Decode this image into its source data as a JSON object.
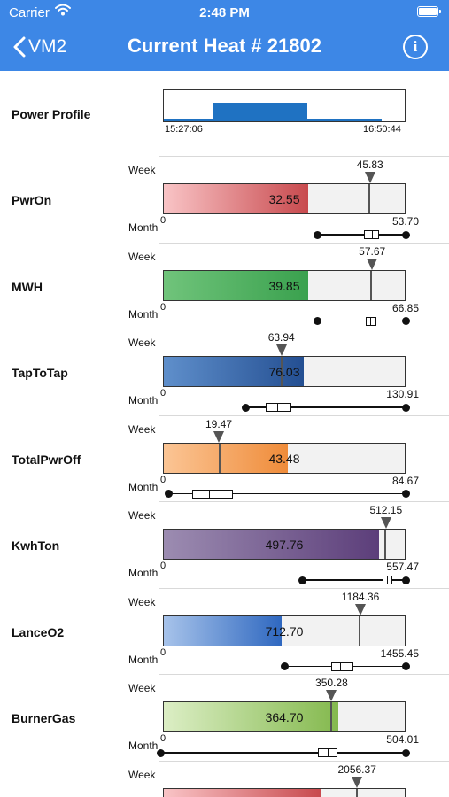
{
  "status_bar": {
    "carrier": "Carrier",
    "time": "2:48 PM"
  },
  "nav": {
    "back_label": "VM2",
    "title": "Current Heat # 21802"
  },
  "power_profile": {
    "label": "Power Profile",
    "start_time": "15:27:06",
    "end_time": "16:50:44"
  },
  "week_label": "Week",
  "month_label": "Month",
  "metrics": [
    {
      "name": "PwrOn",
      "value": "32.55",
      "week": "45.83",
      "min": "0",
      "max": "53.70",
      "fill_fraction": 0.6,
      "week_fraction": 0.853,
      "color_from": "#f9c4c6",
      "color_to": "#c84a4e",
      "month_box": {
        "min": 0.638,
        "q1": 0.83,
        "median": 0.86,
        "q3": 0.89,
        "max": 1.0
      }
    },
    {
      "name": "MWH",
      "value": "39.85",
      "week": "57.67",
      "min": "0",
      "max": "66.85",
      "fill_fraction": 0.6,
      "week_fraction": 0.862,
      "color_from": "#70c47b",
      "color_to": "#3aa14e",
      "month_box": {
        "min": 0.638,
        "q1": 0.835,
        "median": 0.855,
        "q3": 0.88,
        "max": 1.0
      }
    },
    {
      "name": "TapToTap",
      "value": "76.03",
      "week": "63.94",
      "min": "0",
      "max": "130.91",
      "fill_fraction": 0.581,
      "week_fraction": 0.488,
      "color_from": "#5f8fcb",
      "color_to": "#244f92",
      "month_box": {
        "min": 0.34,
        "q1": 0.425,
        "median": 0.47,
        "q3": 0.53,
        "max": 1.0
      }
    },
    {
      "name": "TotalPwrOff",
      "value": "43.48",
      "week": "19.47",
      "min": "0",
      "max": "84.67",
      "fill_fraction": 0.514,
      "week_fraction": 0.23,
      "color_from": "#fbc595",
      "color_to": "#ef8c3a",
      "month_box": {
        "min": 0.025,
        "q1": 0.12,
        "median": 0.19,
        "q3": 0.29,
        "max": 1.0
      }
    },
    {
      "name": "KwhTon",
      "value": "497.76",
      "week": "512.15",
      "min": "0",
      "max": "557.47",
      "fill_fraction": 0.893,
      "week_fraction": 0.919,
      "color_from": "#9c8cb1",
      "color_to": "#5c3e7a",
      "month_box": {
        "min": 0.575,
        "q1": 0.905,
        "median": 0.925,
        "q3": 0.945,
        "max": 1.0
      }
    },
    {
      "name": "LanceO2",
      "value": "712.70",
      "week": "1184.36",
      "min": "0",
      "max": "1455.45",
      "fill_fraction": 0.49,
      "week_fraction": 0.814,
      "color_from": "#a7c3ea",
      "color_to": "#2f68c0",
      "month_box": {
        "min": 0.5,
        "q1": 0.695,
        "median": 0.73,
        "q3": 0.785,
        "max": 1.0
      }
    },
    {
      "name": "BurnerGas",
      "value": "364.70",
      "week": "350.28",
      "min": "0",
      "max": "504.01",
      "fill_fraction": 0.724,
      "week_fraction": 0.695,
      "color_from": "#dceec5",
      "color_to": "#84b94e",
      "month_box": {
        "min": -0.01,
        "q1": 0.64,
        "median": 0.68,
        "q3": 0.72,
        "max": 1.0
      }
    },
    {
      "name": "",
      "value": "",
      "week": "2056.37",
      "min": "",
      "max": "",
      "fill_fraction": 0.65,
      "week_fraction": 0.8,
      "color_from": "#f9c4c6",
      "color_to": "#c84a4e",
      "month_box": null
    }
  ]
}
